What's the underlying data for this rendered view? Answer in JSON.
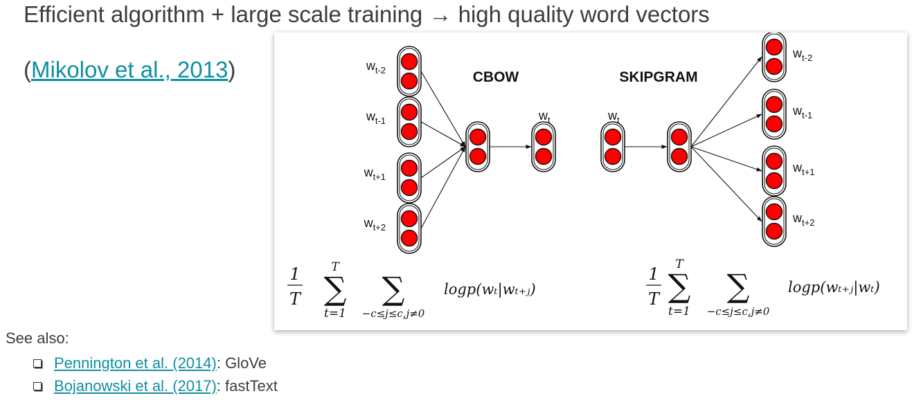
{
  "slide": {
    "headline": "Efficient algorithm + large scale training → high quality word vectors",
    "citation": {
      "open": "(",
      "link": "Mikolov et al., 2013",
      "close": ")"
    }
  },
  "diagram": {
    "cbow": {
      "title": "CBOW",
      "inputs": [
        {
          "base": "w",
          "sub": "t-2"
        },
        {
          "base": "w",
          "sub": "t-1"
        },
        {
          "base": "w",
          "sub": "t+1"
        },
        {
          "base": "w",
          "sub": "t+2"
        }
      ],
      "output": {
        "base": "w",
        "sub": "t"
      },
      "objective": {
        "frac_num": "1",
        "frac_den": "T",
        "sum1_top": "T",
        "sum1_bottom": "t=1",
        "sum2_bottom": "−c≤j≤c,j≠0",
        "term": "logp(wₜ|wₜ₊ⱼ)"
      }
    },
    "skipgram": {
      "title": "SKIPGRAM",
      "input": {
        "base": "w",
        "sub": "t"
      },
      "outputs": [
        {
          "base": "w",
          "sub": "t-2"
        },
        {
          "base": "w",
          "sub": "t-1"
        },
        {
          "base": "w",
          "sub": "t+1"
        },
        {
          "base": "w",
          "sub": "t+2"
        }
      ],
      "objective": {
        "frac_num": "1",
        "frac_den": "T",
        "sum1_top": "T",
        "sum1_bottom": "t=1",
        "sum2_bottom": "−c≤j≤c,j≠0",
        "term": "logp(wₜ₊ⱼ|wₜ)"
      }
    },
    "colors": {
      "node_fill": "#ff0000",
      "node_stroke": "#111111",
      "capsule_fill": "#ffffff"
    }
  },
  "see_also": {
    "label": "See also:",
    "refs": [
      {
        "link": "Pennington et al. (2014)",
        "rest": ": GloVe"
      },
      {
        "link": "Bojanowski et al. (2017)",
        "rest": ": fastText"
      }
    ]
  }
}
